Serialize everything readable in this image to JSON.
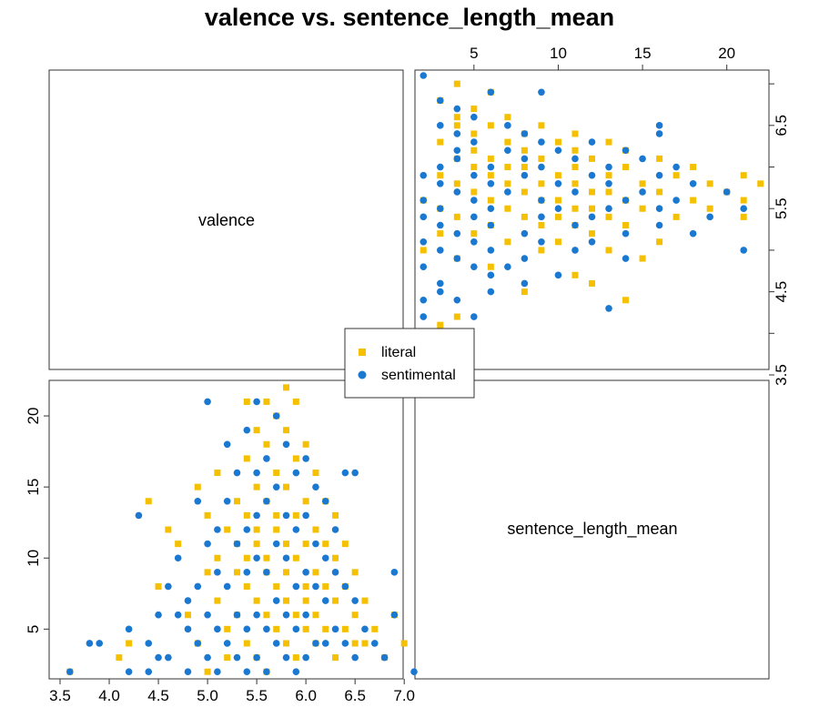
{
  "title": "valence vs. sentence_length_mean",
  "chart_data": {
    "type": "scatter",
    "layout": "pairs",
    "variables": [
      "valence",
      "sentence_length_mean"
    ],
    "valence_range": [
      3.5,
      7.1
    ],
    "valence_ticks": [
      "3.5",
      "4.0",
      "4.5",
      "5.0",
      "5.5",
      "6.0",
      "6.5",
      "7.0"
    ],
    "valence_ticks_right": [
      "3.5",
      "4.5",
      "5.5",
      "6.5"
    ],
    "length_range": [
      1.5,
      22.5
    ],
    "length_ticks": [
      "5",
      "10",
      "15",
      "20"
    ],
    "legend": {
      "placement": "center",
      "entries": [
        "literal",
        "sentimental"
      ]
    },
    "colors": {
      "literal": "#f5c000",
      "sentimental": "#1a78d0"
    },
    "series": [
      {
        "name": "literal",
        "marker": "square",
        "points": [
          [
            3.6,
            2
          ],
          [
            4.1,
            3
          ],
          [
            4.2,
            4
          ],
          [
            4.4,
            14
          ],
          [
            4.5,
            8
          ],
          [
            4.6,
            12
          ],
          [
            4.7,
            11
          ],
          [
            4.8,
            6
          ],
          [
            4.9,
            15
          ],
          [
            4.9,
            4
          ],
          [
            5.0,
            9
          ],
          [
            5.0,
            13
          ],
          [
            5.0,
            2
          ],
          [
            5.1,
            10
          ],
          [
            5.1,
            7
          ],
          [
            5.1,
            16
          ],
          [
            5.2,
            12
          ],
          [
            5.2,
            5
          ],
          [
            5.2,
            3
          ],
          [
            5.3,
            14
          ],
          [
            5.3,
            9
          ],
          [
            5.3,
            6
          ],
          [
            5.3,
            11
          ],
          [
            5.4,
            21
          ],
          [
            5.4,
            17
          ],
          [
            5.4,
            13
          ],
          [
            5.4,
            8
          ],
          [
            5.4,
            4
          ],
          [
            5.4,
            10
          ],
          [
            5.5,
            19
          ],
          [
            5.5,
            15
          ],
          [
            5.5,
            12
          ],
          [
            5.5,
            7
          ],
          [
            5.5,
            3
          ],
          [
            5.5,
            11
          ],
          [
            5.6,
            21
          ],
          [
            5.6,
            18
          ],
          [
            5.6,
            14
          ],
          [
            5.6,
            10
          ],
          [
            5.6,
            6
          ],
          [
            5.6,
            2
          ],
          [
            5.6,
            9
          ],
          [
            5.7,
            20
          ],
          [
            5.7,
            16
          ],
          [
            5.7,
            12
          ],
          [
            5.7,
            8
          ],
          [
            5.7,
            5
          ],
          [
            5.7,
            13
          ],
          [
            5.8,
            22
          ],
          [
            5.8,
            19
          ],
          [
            5.8,
            15
          ],
          [
            5.8,
            11
          ],
          [
            5.8,
            7
          ],
          [
            5.8,
            4
          ],
          [
            5.8,
            9
          ],
          [
            5.9,
            21
          ],
          [
            5.9,
            17
          ],
          [
            5.9,
            13
          ],
          [
            5.9,
            10
          ],
          [
            5.9,
            6
          ],
          [
            5.9,
            3
          ],
          [
            6.0,
            18
          ],
          [
            6.0,
            14
          ],
          [
            6.0,
            11
          ],
          [
            6.0,
            8
          ],
          [
            6.0,
            5
          ],
          [
            6.0,
            7
          ],
          [
            6.1,
            16
          ],
          [
            6.1,
            12
          ],
          [
            6.1,
            9
          ],
          [
            6.1,
            6
          ],
          [
            6.1,
            4
          ],
          [
            6.2,
            14
          ],
          [
            6.2,
            11
          ],
          [
            6.2,
            8
          ],
          [
            6.2,
            5
          ],
          [
            6.3,
            13
          ],
          [
            6.3,
            10
          ],
          [
            6.3,
            7
          ],
          [
            6.3,
            3
          ],
          [
            6.4,
            11
          ],
          [
            6.4,
            8
          ],
          [
            6.4,
            5
          ],
          [
            6.5,
            9
          ],
          [
            6.5,
            6
          ],
          [
            6.5,
            4
          ],
          [
            6.6,
            7
          ],
          [
            6.6,
            4
          ],
          [
            6.7,
            5
          ],
          [
            6.8,
            3
          ],
          [
            6.9,
            6
          ],
          [
            7.0,
            4
          ]
        ]
      },
      {
        "name": "sentimental",
        "marker": "circle",
        "points": [
          [
            3.6,
            2
          ],
          [
            3.8,
            4
          ],
          [
            3.9,
            4
          ],
          [
            4.2,
            2
          ],
          [
            4.2,
            5
          ],
          [
            4.3,
            13
          ],
          [
            4.4,
            4
          ],
          [
            4.4,
            2
          ],
          [
            4.5,
            6
          ],
          [
            4.5,
            3
          ],
          [
            4.6,
            8
          ],
          [
            4.6,
            3
          ],
          [
            4.7,
            6
          ],
          [
            4.7,
            10
          ],
          [
            4.8,
            5
          ],
          [
            4.8,
            2
          ],
          [
            4.8,
            7
          ],
          [
            4.9,
            14
          ],
          [
            4.9,
            4
          ],
          [
            4.9,
            8
          ],
          [
            5.0,
            21
          ],
          [
            5.0,
            11
          ],
          [
            5.0,
            6
          ],
          [
            5.0,
            3
          ],
          [
            5.1,
            12
          ],
          [
            5.1,
            9
          ],
          [
            5.1,
            5
          ],
          [
            5.1,
            2
          ],
          [
            5.2,
            18
          ],
          [
            5.2,
            14
          ],
          [
            5.2,
            8
          ],
          [
            5.2,
            4
          ],
          [
            5.3,
            16
          ],
          [
            5.3,
            11
          ],
          [
            5.3,
            6
          ],
          [
            5.3,
            3
          ],
          [
            5.4,
            19
          ],
          [
            5.4,
            12
          ],
          [
            5.4,
            9
          ],
          [
            5.4,
            5
          ],
          [
            5.4,
            2
          ],
          [
            5.5,
            21
          ],
          [
            5.5,
            16
          ],
          [
            5.5,
            13
          ],
          [
            5.5,
            10
          ],
          [
            5.5,
            6
          ],
          [
            5.5,
            3
          ],
          [
            5.6,
            17
          ],
          [
            5.6,
            14
          ],
          [
            5.6,
            9
          ],
          [
            5.6,
            5
          ],
          [
            5.6,
            2
          ],
          [
            5.7,
            20
          ],
          [
            5.7,
            15
          ],
          [
            5.7,
            11
          ],
          [
            5.7,
            7
          ],
          [
            5.7,
            4
          ],
          [
            5.8,
            18
          ],
          [
            5.8,
            13
          ],
          [
            5.8,
            10
          ],
          [
            5.8,
            6
          ],
          [
            5.8,
            3
          ],
          [
            5.9,
            16
          ],
          [
            5.9,
            12
          ],
          [
            5.9,
            8
          ],
          [
            5.9,
            5
          ],
          [
            5.9,
            2
          ],
          [
            6.0,
            17
          ],
          [
            6.0,
            13
          ],
          [
            6.0,
            9
          ],
          [
            6.0,
            6
          ],
          [
            6.0,
            3
          ],
          [
            6.1,
            15
          ],
          [
            6.1,
            11
          ],
          [
            6.1,
            8
          ],
          [
            6.1,
            4
          ],
          [
            6.2,
            14
          ],
          [
            6.2,
            10
          ],
          [
            6.2,
            7
          ],
          [
            6.2,
            4
          ],
          [
            6.3,
            12
          ],
          [
            6.3,
            9
          ],
          [
            6.3,
            5
          ],
          [
            6.4,
            16
          ],
          [
            6.4,
            8
          ],
          [
            6.4,
            4
          ],
          [
            6.5,
            16
          ],
          [
            6.5,
            7
          ],
          [
            6.5,
            3
          ],
          [
            6.6,
            5
          ],
          [
            6.7,
            4
          ],
          [
            6.8,
            3
          ],
          [
            6.9,
            9
          ],
          [
            6.9,
            6
          ],
          [
            7.1,
            2
          ]
        ]
      }
    ]
  }
}
